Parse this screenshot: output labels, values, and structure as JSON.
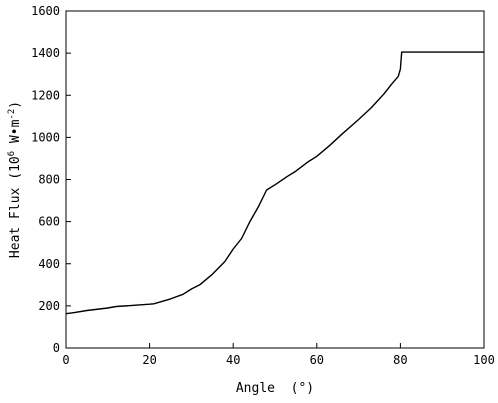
{
  "chart_data": {
    "type": "line",
    "title": "",
    "xlabel": "Angle  (°)",
    "ylabel_main": "Heat Flux (10",
    "ylabel_sup1": "6",
    "ylabel_mid": " W•m",
    "ylabel_sup2": "-2",
    "ylabel_end": ")",
    "xlim": [
      0,
      100
    ],
    "ylim": [
      0,
      1600
    ],
    "xticks": [
      0,
      20,
      40,
      60,
      80,
      100
    ],
    "yticks": [
      0,
      200,
      400,
      600,
      800,
      1000,
      1200,
      1400,
      1600
    ],
    "grid": false,
    "series": [
      {
        "x": [
          0,
          2,
          5,
          10,
          12,
          15,
          20,
          21,
          25,
          28,
          30,
          32,
          35,
          38,
          40,
          42,
          44,
          46,
          48,
          50,
          53,
          55,
          58,
          60,
          63,
          66,
          70,
          73,
          76,
          78,
          79.5,
          80,
          80.3,
          82,
          85,
          90,
          95,
          100
        ],
        "y": [
          163,
          168,
          178,
          190,
          197,
          201,
          208,
          210,
          233,
          255,
          280,
          300,
          350,
          410,
          470,
          520,
          600,
          670,
          750,
          775,
          815,
          840,
          885,
          910,
          960,
          1015,
          1085,
          1140,
          1205,
          1255,
          1290,
          1325,
          1405,
          1405,
          1405,
          1405,
          1405,
          1405
        ]
      }
    ]
  }
}
